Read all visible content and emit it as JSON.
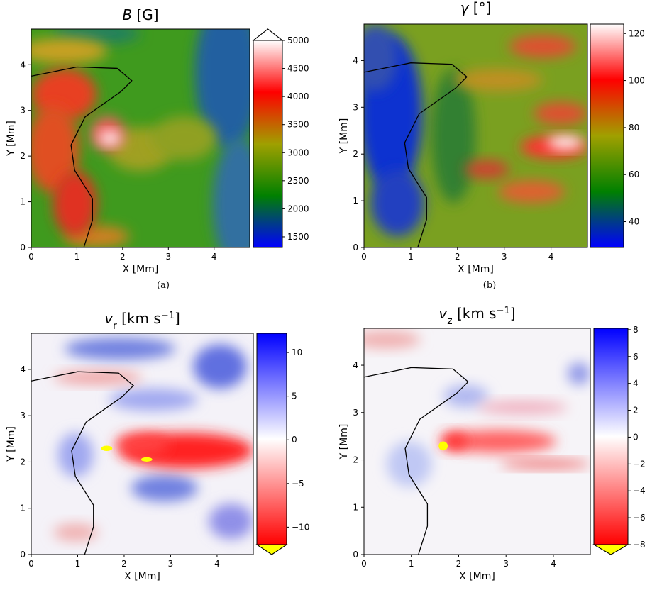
{
  "chart_data": [
    {
      "type": "heatmap",
      "title": [
        {
          "text": "B",
          "style": "italic"
        },
        {
          "text": " [G]"
        }
      ],
      "x_label": "X [Mm]",
      "y_label": "Y [Mm]",
      "xlim": [
        0,
        4.78
      ],
      "ylim": [
        0,
        4.78
      ],
      "xticks": [
        0,
        1,
        2,
        3,
        4
      ],
      "yticks": [
        0,
        1,
        2,
        3,
        4
      ],
      "colorbar": {
        "lim": [
          1310,
          5000
        ],
        "ticks": [
          1500,
          2000,
          2500,
          3000,
          3500,
          4000,
          4500,
          5000
        ],
        "colors": [
          "#0000ff",
          "#008000",
          "#a0a000",
          "#ff0000",
          "#ffffff"
        ],
        "extend": "max",
        "extend_color": "#ffffff"
      },
      "contour": {
        "x": [
          0,
          1,
          1.88,
          2.2,
          1.96,
          1.18,
          0.87,
          0.95,
          1.34,
          1.34,
          1.15
        ],
        "y": [
          3.75,
          3.95,
          3.92,
          3.65,
          3.41,
          2.86,
          2.24,
          1.69,
          1.07,
          0.6,
          0
        ]
      },
      "caption": "(a)"
    },
    {
      "type": "heatmap",
      "title": [
        {
          "text": "γ",
          "style": "italic"
        },
        {
          "text": " [°]"
        }
      ],
      "x_label": "X [Mm]",
      "y_label": "Y [Mm]",
      "xlim": [
        0,
        4.78
      ],
      "ylim": [
        0,
        4.78
      ],
      "xticks": [
        0,
        1,
        2,
        3,
        4
      ],
      "yticks": [
        0,
        1,
        2,
        3,
        4
      ],
      "colorbar": {
        "lim": [
          29,
          124
        ],
        "ticks": [
          40,
          60,
          80,
          100,
          120
        ],
        "colors": [
          "#0000ff",
          "#008000",
          "#a0a000",
          "#ff0000",
          "#ffffff"
        ]
      },
      "contour": {
        "x": [
          0,
          1,
          1.88,
          2.2,
          1.96,
          1.18,
          0.87,
          0.95,
          1.34,
          1.34,
          1.15
        ],
        "y": [
          3.75,
          3.95,
          3.92,
          3.65,
          3.41,
          2.86,
          2.24,
          1.69,
          1.07,
          0.6,
          0
        ]
      },
      "caption": "(b)"
    },
    {
      "type": "heatmap",
      "title": [
        {
          "text": "v",
          "style": "italic"
        },
        {
          "text": "r",
          "style": "sub"
        },
        {
          "text": " [km s"
        },
        {
          "text": "−1",
          "style": "sup"
        },
        {
          "text": "]"
        }
      ],
      "x_label": "X [Mm]",
      "y_label": "Y [Mm]",
      "xlim": [
        0,
        4.78
      ],
      "ylim": [
        0,
        4.78
      ],
      "xticks": [
        0,
        1,
        2,
        3,
        4
      ],
      "yticks": [
        0,
        1,
        2,
        3,
        4
      ],
      "colorbar": {
        "lim": [
          -12,
          12.2
        ],
        "ticks": [
          {
            "value": -10,
            "label": "−10"
          },
          {
            "value": -5,
            "label": "−5"
          },
          0,
          5,
          10
        ],
        "colors": [
          "#ff0000",
          "#ffffff",
          "#0000ff"
        ],
        "extend": "min",
        "extend_color": "#ffff00"
      },
      "contour": {
        "x": [
          0,
          1,
          1.88,
          2.2,
          1.96,
          1.18,
          0.87,
          0.95,
          1.34,
          1.34,
          1.15
        ],
        "y": [
          3.75,
          3.95,
          3.92,
          3.65,
          3.41,
          2.86,
          2.24,
          1.69,
          1.07,
          0.6,
          0
        ]
      }
    },
    {
      "type": "heatmap",
      "title": [
        {
          "text": "v",
          "style": "italic"
        },
        {
          "text": "z",
          "style": "sub"
        },
        {
          "text": " [km s"
        },
        {
          "text": "−1",
          "style": "sup"
        },
        {
          "text": "]"
        }
      ],
      "x_label": "X [Mm]",
      "y_label": "Y [Mm]",
      "xlim": [
        0,
        4.78
      ],
      "ylim": [
        0,
        4.78
      ],
      "xticks": [
        0,
        1,
        2,
        3,
        4
      ],
      "yticks": [
        0,
        1,
        2,
        3,
        4
      ],
      "colorbar": {
        "lim": [
          -8,
          8.1
        ],
        "ticks": [
          {
            "value": -8,
            "label": "−8"
          },
          {
            "value": -6,
            "label": "−6"
          },
          {
            "value": -4,
            "label": "−4"
          },
          {
            "value": -2,
            "label": "−2"
          },
          0,
          2,
          4,
          6,
          8
        ],
        "colors": [
          "#ff0000",
          "#ffffff",
          "#0000ff"
        ],
        "extend": "min",
        "extend_color": "#ffff00"
      },
      "contour": {
        "x": [
          0,
          1,
          1.88,
          2.2,
          1.96,
          1.18,
          0.87,
          0.95,
          1.34,
          1.34,
          1.15
        ],
        "y": [
          3.75,
          3.95,
          3.92,
          3.65,
          3.41,
          2.86,
          2.24,
          1.69,
          1.07,
          0.6,
          0
        ]
      }
    }
  ]
}
